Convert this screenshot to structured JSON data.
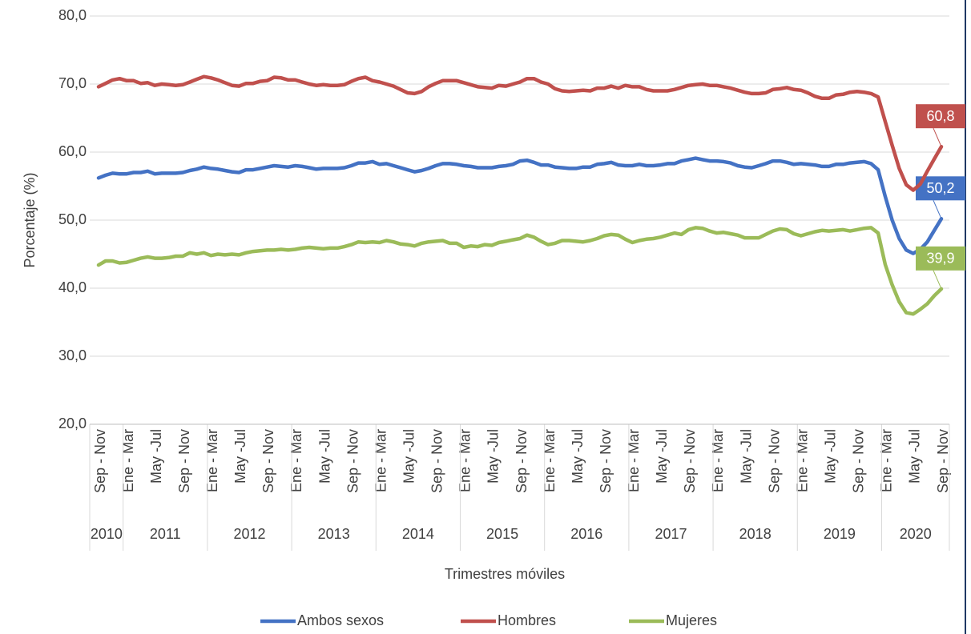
{
  "chart_data": {
    "type": "line",
    "y_label": "Porcentaje (%)",
    "x_label": "Trimestres móviles",
    "ylim": [
      20,
      80
    ],
    "yticks": [
      {
        "value": 20,
        "label": "20,0"
      },
      {
        "value": 30,
        "label": "30,0"
      },
      {
        "value": 40,
        "label": "40,0"
      },
      {
        "value": 50,
        "label": "50,0"
      },
      {
        "value": 60,
        "label": "60,0"
      },
      {
        "value": 70,
        "label": "70,0"
      },
      {
        "value": 80,
        "label": "80,0"
      }
    ],
    "grid": true,
    "legend": "bottom",
    "categories": [
      "Sep - Nov",
      null,
      null,
      null,
      "Ene - Mar",
      null,
      null,
      null,
      "May -Jul",
      null,
      null,
      null,
      "Sep - Nov",
      null,
      null,
      null,
      "Ene - Mar",
      null,
      null,
      null,
      "May -Jul",
      null,
      null,
      null,
      "Sep - Nov",
      null,
      null,
      null,
      "Ene - Mar",
      null,
      null,
      null,
      "May -Jul",
      null,
      null,
      null,
      "Sep - Nov",
      null,
      null,
      null,
      "Ene - Mar",
      null,
      null,
      null,
      "May -Jul",
      null,
      null,
      null,
      "Sep - Nov",
      null,
      null,
      null,
      "Ene - Mar",
      null,
      null,
      null,
      "May -Jul",
      null,
      null,
      null,
      "Sep - Nov",
      null,
      null,
      null,
      "Ene - Mar",
      null,
      null,
      null,
      "May -Jul",
      null,
      null,
      null,
      "Sep - Nov",
      null,
      null,
      null,
      "Ene - Mar",
      null,
      null,
      null,
      "May -Jul",
      null,
      null,
      null,
      "Sep - Nov",
      null,
      null,
      null,
      "Ene - Mar",
      null,
      null,
      null,
      "May -Jul",
      null,
      null,
      null,
      "Sep - Nov",
      null,
      null,
      null,
      "Ene - Mar",
      null,
      null,
      null,
      "May -Jul",
      null,
      null,
      null,
      "Sep - Nov",
      null,
      null,
      null,
      "Ene - Mar",
      null,
      null,
      null,
      "May -Jul",
      null,
      null,
      null,
      "Sep - Nov"
    ],
    "x_groups": [
      {
        "label": "2010",
        "count": 4
      },
      {
        "label": "2011",
        "count": 12
      },
      {
        "label": "2012",
        "count": 12
      },
      {
        "label": "2013",
        "count": 12
      },
      {
        "label": "2014",
        "count": 12
      },
      {
        "label": "2015",
        "count": 12
      },
      {
        "label": "2016",
        "count": 12
      },
      {
        "label": "2017",
        "count": 12
      },
      {
        "label": "2018",
        "count": 12
      },
      {
        "label": "2019",
        "count": 12
      },
      {
        "label": "2020",
        "count": 9
      }
    ],
    "series": [
      {
        "name": "Ambos sexos",
        "color": "#4472c4",
        "values": [
          56.2,
          56.6,
          56.9,
          56.8,
          56.8,
          57.0,
          57.0,
          57.2,
          56.8,
          56.9,
          56.9,
          56.9,
          57.0,
          57.3,
          57.5,
          57.8,
          57.6,
          57.5,
          57.3,
          57.1,
          57.0,
          57.4,
          57.4,
          57.6,
          57.8,
          58.0,
          57.9,
          57.8,
          58.0,
          57.9,
          57.7,
          57.5,
          57.6,
          57.6,
          57.6,
          57.7,
          58.0,
          58.4,
          58.4,
          58.6,
          58.2,
          58.3,
          58.0,
          57.7,
          57.4,
          57.1,
          57.3,
          57.6,
          58.0,
          58.3,
          58.3,
          58.2,
          58.0,
          57.9,
          57.7,
          57.7,
          57.7,
          57.9,
          58.0,
          58.2,
          58.7,
          58.8,
          58.5,
          58.1,
          58.1,
          57.8,
          57.7,
          57.6,
          57.6,
          57.8,
          57.8,
          58.2,
          58.3,
          58.5,
          58.1,
          58.0,
          58.0,
          58.2,
          58.0,
          58.0,
          58.1,
          58.3,
          58.3,
          58.7,
          58.9,
          59.1,
          58.9,
          58.7,
          58.7,
          58.6,
          58.4,
          58.0,
          57.8,
          57.7,
          58.0,
          58.3,
          58.7,
          58.7,
          58.5,
          58.2,
          58.3,
          58.2,
          58.1,
          57.9,
          57.9,
          58.2,
          58.2,
          58.4,
          58.5,
          58.6,
          58.3,
          57.4,
          53.5,
          50.0,
          47.3,
          45.6,
          45.1,
          45.7,
          46.8,
          48.5,
          50.2
        ],
        "value_labels": {
          "120": "50,2"
        }
      },
      {
        "name": "Hombres",
        "color": "#c0504d",
        "values": [
          69.6,
          70.1,
          70.6,
          70.8,
          70.5,
          70.5,
          70.1,
          70.2,
          69.8,
          70.0,
          69.9,
          69.8,
          69.9,
          70.3,
          70.7,
          71.1,
          70.9,
          70.6,
          70.2,
          69.8,
          69.7,
          70.1,
          70.1,
          70.4,
          70.5,
          71.0,
          70.9,
          70.6,
          70.6,
          70.3,
          70.0,
          69.8,
          69.9,
          69.8,
          69.8,
          69.9,
          70.4,
          70.8,
          71.0,
          70.5,
          70.3,
          70.0,
          69.7,
          69.2,
          68.7,
          68.6,
          68.9,
          69.6,
          70.1,
          70.5,
          70.5,
          70.5,
          70.2,
          69.9,
          69.6,
          69.5,
          69.4,
          69.8,
          69.7,
          70.0,
          70.3,
          70.8,
          70.8,
          70.3,
          70.0,
          69.3,
          69.0,
          68.9,
          69.0,
          69.1,
          69.0,
          69.4,
          69.4,
          69.7,
          69.4,
          69.8,
          69.6,
          69.6,
          69.2,
          69.0,
          69.0,
          69.0,
          69.2,
          69.5,
          69.8,
          69.9,
          70.0,
          69.8,
          69.8,
          69.6,
          69.4,
          69.1,
          68.8,
          68.6,
          68.6,
          68.7,
          69.2,
          69.3,
          69.5,
          69.2,
          69.1,
          68.7,
          68.2,
          67.9,
          67.9,
          68.4,
          68.5,
          68.8,
          68.9,
          68.8,
          68.6,
          68.1,
          64.5,
          61.0,
          57.6,
          55.2,
          54.4,
          55.3,
          57.2,
          59.0,
          60.8
        ],
        "value_labels": {
          "120": "60,8"
        }
      },
      {
        "name": "Mujeres",
        "color": "#9bbb59",
        "values": [
          43.4,
          44.0,
          44.0,
          43.7,
          43.8,
          44.1,
          44.4,
          44.6,
          44.4,
          44.4,
          44.5,
          44.7,
          44.7,
          45.2,
          45.0,
          45.2,
          44.8,
          45.0,
          44.9,
          45.0,
          44.9,
          45.2,
          45.4,
          45.5,
          45.6,
          45.6,
          45.7,
          45.6,
          45.7,
          45.9,
          46.0,
          45.9,
          45.8,
          45.9,
          45.9,
          46.1,
          46.4,
          46.8,
          46.7,
          46.8,
          46.7,
          47.0,
          46.8,
          46.5,
          46.4,
          46.2,
          46.6,
          46.8,
          46.9,
          47.0,
          46.6,
          46.6,
          46.0,
          46.2,
          46.1,
          46.4,
          46.3,
          46.7,
          46.9,
          47.1,
          47.3,
          47.8,
          47.5,
          46.9,
          46.4,
          46.6,
          47.0,
          47.0,
          46.9,
          46.8,
          47.0,
          47.3,
          47.7,
          47.9,
          47.8,
          47.2,
          46.7,
          47.0,
          47.2,
          47.3,
          47.5,
          47.8,
          48.1,
          47.9,
          48.6,
          48.9,
          48.8,
          48.4,
          48.1,
          48.2,
          48.0,
          47.8,
          47.4,
          47.4,
          47.4,
          47.9,
          48.4,
          48.7,
          48.6,
          48.0,
          47.7,
          48.0,
          48.3,
          48.5,
          48.4,
          48.5,
          48.6,
          48.4,
          48.6,
          48.8,
          48.9,
          48.1,
          43.5,
          40.5,
          38.0,
          36.4,
          36.2,
          36.9,
          37.7,
          38.9,
          39.9
        ],
        "value_labels": {
          "120": "39,9"
        }
      }
    ]
  }
}
